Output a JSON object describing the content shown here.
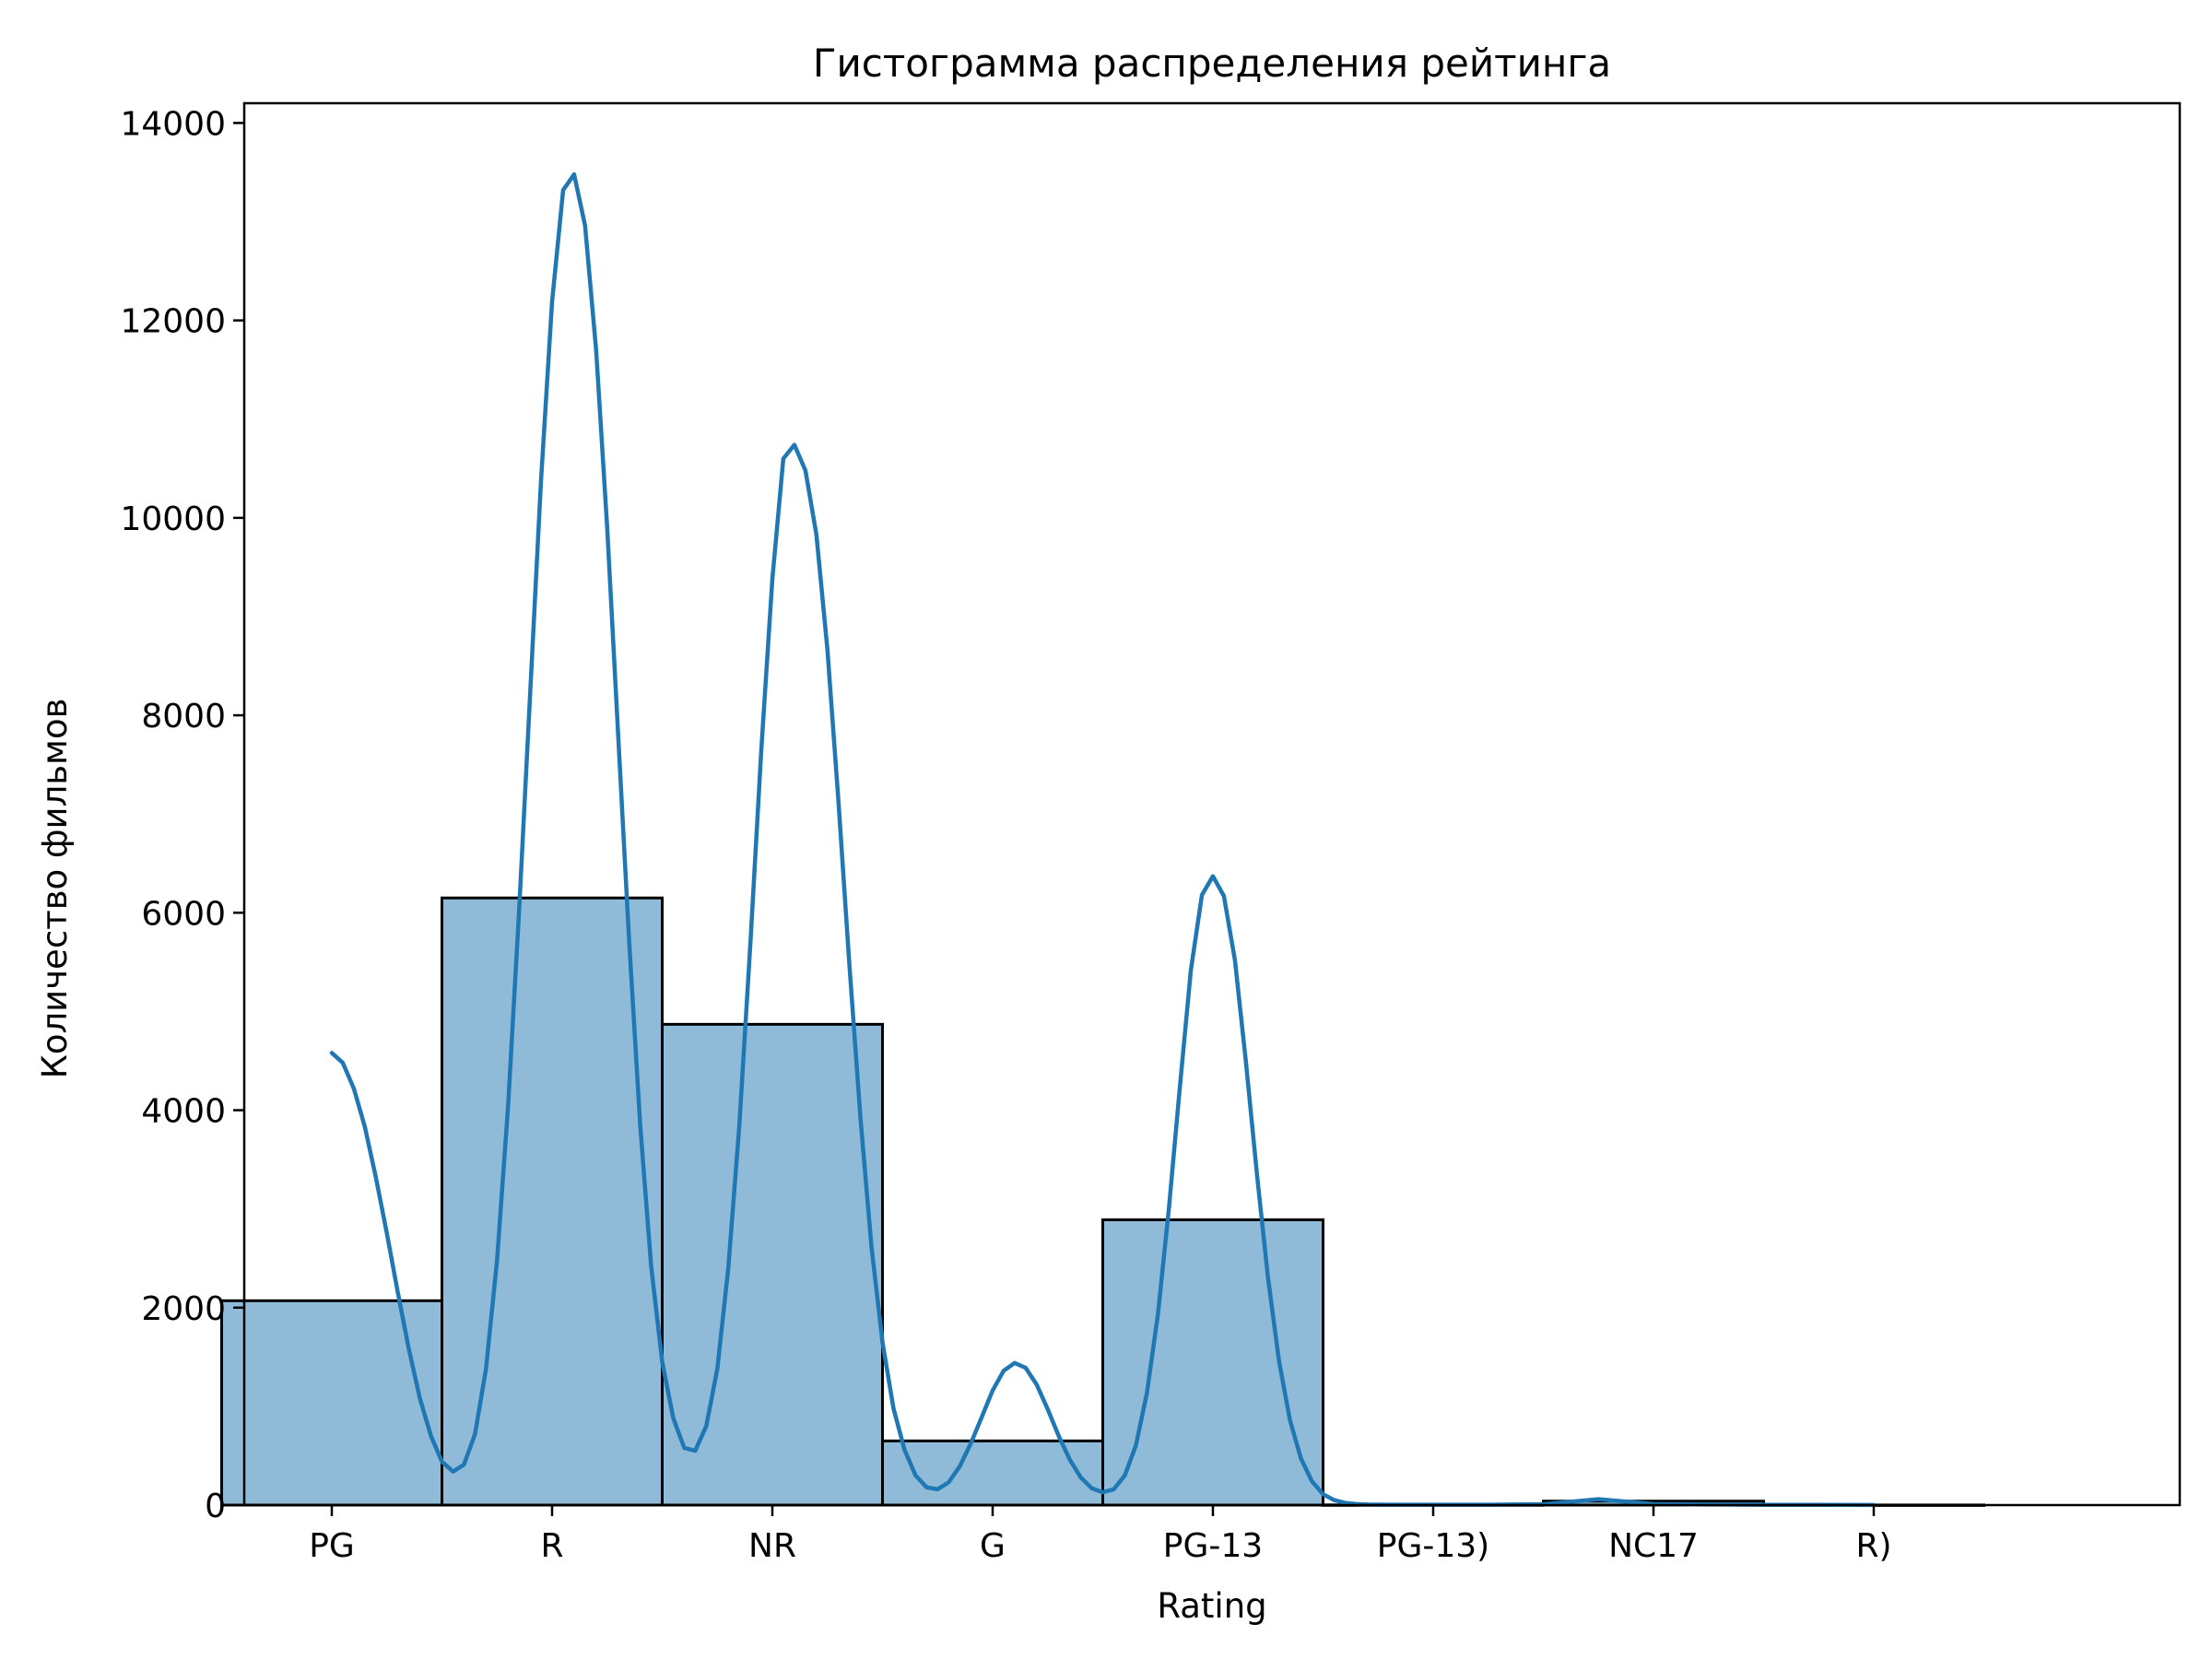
{
  "chart_data": {
    "type": "bar",
    "title": "Гистограмма распределения рейтинга",
    "xlabel": "Rating",
    "ylabel": "Количество фильмов",
    "categories": [
      "PG",
      "R",
      "NR",
      "G",
      "PG-13",
      "PG-13)",
      "NC17",
      "R)"
    ],
    "values": [
      2070,
      6150,
      4870,
      650,
      2890,
      2,
      40,
      1
    ],
    "ylim": [
      0,
      14200
    ],
    "yticks": [
      0,
      2000,
      4000,
      6000,
      8000,
      10000,
      12000,
      14000
    ],
    "ytick_labels": [
      "0",
      "2000",
      "4000",
      "6000",
      "8000",
      "10000",
      "12000",
      "14000"
    ],
    "kde": {
      "x": [
        0.0,
        0.05,
        0.1,
        0.15,
        0.2,
        0.25,
        0.3,
        0.35,
        0.4,
        0.45,
        0.5,
        0.55,
        0.6,
        0.65,
        0.7,
        0.75,
        0.8,
        0.85,
        0.9,
        0.95,
        1.0,
        1.05,
        1.1,
        1.15,
        1.2,
        1.25,
        1.3,
        1.35,
        1.4,
        1.45,
        1.5,
        1.55,
        1.6,
        1.65,
        1.7,
        1.75,
        1.8,
        1.85,
        1.9,
        1.95,
        2.0,
        2.05,
        2.1,
        2.15,
        2.2,
        2.25,
        2.3,
        2.35,
        2.4,
        2.45,
        2.5,
        2.55,
        2.6,
        2.65,
        2.7,
        2.75,
        2.8,
        2.85,
        2.9,
        2.95,
        3.0,
        3.05,
        3.1,
        3.15,
        3.2,
        3.25,
        3.3,
        3.35,
        3.4,
        3.45,
        3.5,
        3.55,
        3.6,
        3.65,
        3.7,
        3.75,
        3.8,
        3.85,
        3.9,
        3.95,
        4.0,
        4.05,
        4.1,
        4.15,
        4.2,
        4.25,
        4.3,
        4.35,
        4.4,
        4.45,
        4.5,
        4.55,
        4.6,
        4.65,
        4.7,
        4.75,
        4.8,
        4.85,
        4.9,
        4.95,
        5.0,
        5.25,
        5.5,
        5.75,
        6.0,
        6.25,
        6.5,
        6.75,
        7.0
      ],
      "y": [
        4580,
        4480,
        4220,
        3830,
        3320,
        2750,
        2150,
        1580,
        1080,
        700,
        440,
        340,
        410,
        720,
        1380,
        2480,
        4030,
        6000,
        8200,
        10380,
        12190,
        13320,
        13480,
        12960,
        11700,
        9900,
        7800,
        5700,
        3850,
        2420,
        1450,
        880,
        580,
        550,
        800,
        1380,
        2400,
        3850,
        5680,
        7650,
        9380,
        10600,
        10740,
        10480,
        9830,
        8660,
        7130,
        5470,
        3920,
        2610,
        1650,
        980,
        560,
        300,
        180,
        160,
        230,
        390,
        620,
        890,
        1160,
        1360,
        1440,
        1390,
        1220,
        970,
        700,
        460,
        280,
        170,
        130,
        160,
        300,
        600,
        1130,
        1930,
        3000,
        4240,
        5420,
        6180,
        6370,
        6170,
        5520,
        4480,
        3350,
        2300,
        1460,
        860,
        470,
        240,
        110,
        50,
        22,
        10,
        6,
        5,
        4,
        4,
        4,
        4,
        4,
        4,
        8,
        60,
        10,
        6,
        3,
        2,
        1
      ]
    }
  }
}
